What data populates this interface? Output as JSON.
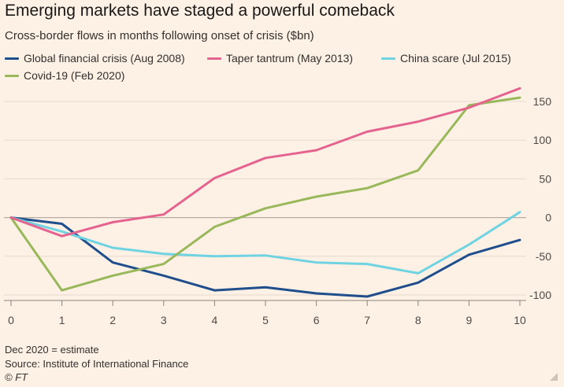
{
  "header": {
    "title": "Emerging markets have staged a powerful comeback",
    "subtitle": "Cross-border flows in months following onset of crisis ($bn)"
  },
  "footer": {
    "note": "Dec 2020 = estimate",
    "source": "Source: Institute of International Finance",
    "logo": "© FT"
  },
  "colors": {
    "background": "#fdf1e6",
    "gridline": "#e6d9ce",
    "zero_line": "#b8aca2"
  },
  "chart_data": {
    "type": "line",
    "title": "Emerging markets have staged a powerful comeback",
    "subtitle": "Cross-border flows in months following onset of crisis ($bn)",
    "xlabel": "",
    "ylabel": "",
    "x": [
      0,
      1,
      2,
      3,
      4,
      5,
      6,
      7,
      8,
      9,
      10
    ],
    "x_tick_labels": [
      "0",
      "1",
      "2",
      "3",
      "4",
      "5",
      "6",
      "7",
      "8",
      "9",
      "10"
    ],
    "xlim": [
      0,
      10
    ],
    "ylim": [
      -110,
      165
    ],
    "y_ticks": [
      150,
      100,
      50,
      0,
      -50,
      -100
    ],
    "y_tick_labels": [
      "150",
      "100",
      "50",
      "0",
      "-50",
      "-100"
    ],
    "y_axis_side": "right",
    "grid": true,
    "legend_position": "top-left",
    "series": [
      {
        "name": "Global financial crisis (Aug 2008)",
        "color": "#1f4e8c",
        "values": [
          0,
          -8,
          -58,
          -75,
          -94,
          -90,
          -98,
          -102,
          -84,
          -48,
          -29
        ]
      },
      {
        "name": "Taper tantrum (May 2013)",
        "color": "#e5638f",
        "values": [
          0,
          -24,
          -6,
          4,
          51,
          77,
          87,
          111,
          124,
          142,
          167
        ]
      },
      {
        "name": "China scare (Jul 2015)",
        "color": "#6fd3e2",
        "values": [
          0,
          -18,
          -39,
          -47,
          -50,
          -49,
          -58,
          -60,
          -72,
          -35,
          7
        ]
      },
      {
        "name": "Covid-19 (Feb 2020)",
        "color": "#98b85a",
        "values": [
          0,
          -94,
          -75,
          -60,
          -12,
          12,
          27,
          38,
          61,
          145,
          155
        ]
      }
    ]
  }
}
